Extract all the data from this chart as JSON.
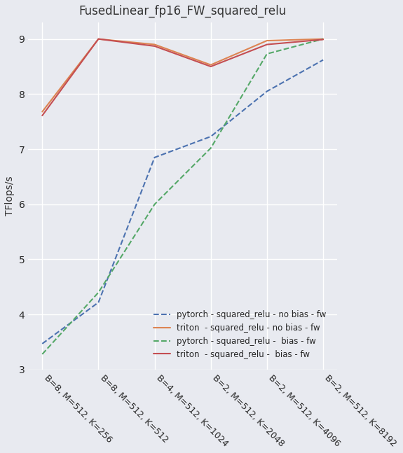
{
  "title": "FusedLinear_fp16_FW_squared_relu",
  "ylabel": "TFlops/s",
  "x_labels": [
    "B=8, M=512, K=256",
    "B=8, M=512, K=512",
    "B=4, M=512, K=1024",
    "B=2, M=512, K=2048",
    "B=2, M=512, K=4096",
    "B=2, M=512, K=8192"
  ],
  "series": [
    {
      "label": "pytorch - squared_relu - no bias - fw",
      "color": "#4c72b0",
      "linestyle": "dashed",
      "values": [
        3.47,
        4.22,
        6.85,
        7.23,
        8.05,
        8.62
      ]
    },
    {
      "label": "triton  - squared_relu - no bias - fw",
      "color": "#dd8452",
      "linestyle": "solid",
      "values": [
        7.68,
        9.0,
        8.9,
        8.53,
        8.97,
        9.0
      ]
    },
    {
      "label": "pytorch - squared_relu -  bias - fw",
      "color": "#55a868",
      "linestyle": "dashed",
      "values": [
        3.28,
        4.4,
        6.0,
        7.02,
        8.73,
        9.0
      ]
    },
    {
      "label": "triton  - squared_relu -  bias - fw",
      "color": "#c44e52",
      "linestyle": "solid",
      "values": [
        7.61,
        9.0,
        8.87,
        8.5,
        8.9,
        8.99
      ]
    }
  ],
  "ylim": [
    3.0,
    9.3
  ],
  "yticks": [
    3,
    4,
    5,
    6,
    7,
    8,
    9
  ],
  "background_color": "#e8eaf0",
  "grid_color": "#ffffff",
  "legend_loc": "lower right",
  "figwidth": 5.75,
  "figheight": 6.47,
  "dpi": 100
}
